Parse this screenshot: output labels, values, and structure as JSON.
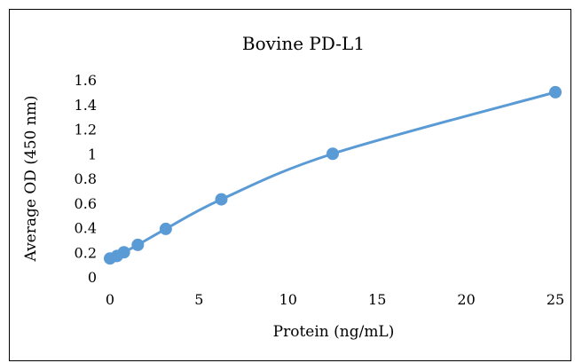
{
  "chart_data": {
    "type": "scatter",
    "title": "Bovine PD-L1",
    "xlabel": "Protein (ng/mL)",
    "ylabel": "Average OD (450 nm)",
    "xlim": [
      0,
      25
    ],
    "ylim": [
      0,
      1.6
    ],
    "xticks": [
      "0",
      "5",
      "10",
      "15",
      "20",
      "25"
    ],
    "yticks": [
      "0",
      "0.2",
      "0.4",
      "0.6",
      "0.8",
      "1",
      "1.2",
      "1.4",
      "1.6"
    ],
    "grid": false,
    "legend": "none",
    "line": "smoothed",
    "color": "#5b9bd5",
    "series": [
      {
        "x": [
          0,
          0.39,
          0.78,
          1.56,
          3.13,
          6.25,
          12.5,
          25
        ],
        "y": [
          0.15,
          0.17,
          0.2,
          0.26,
          0.39,
          0.63,
          1.0,
          1.5
        ]
      }
    ]
  }
}
